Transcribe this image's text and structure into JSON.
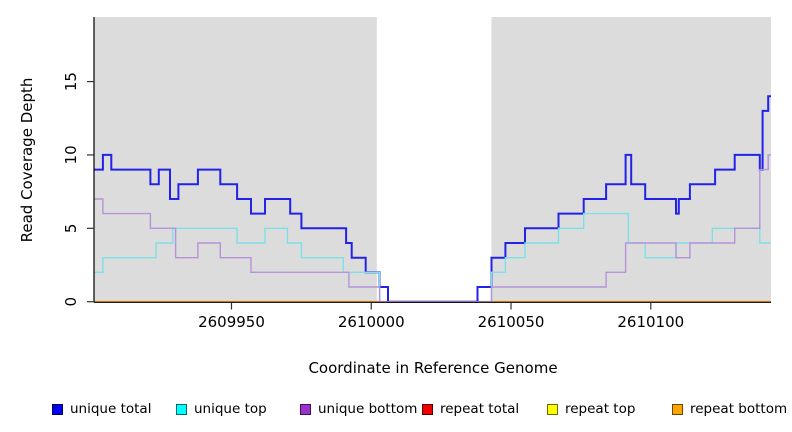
{
  "chart_data": {
    "type": "line",
    "subtype": "step",
    "title": "",
    "xlabel": "Coordinate in Reference Genome",
    "ylabel": "Read Coverage Depth",
    "xlim": [
      2609901,
      2610143
    ],
    "ylim": [
      0,
      19.4
    ],
    "xticks": [
      2609950,
      2610000,
      2610050,
      2610100
    ],
    "yticks": [
      0,
      5,
      10,
      15
    ],
    "grid": false,
    "plot_background": "#dcdcdc",
    "uncovered_band": {
      "x_start": 2610002,
      "x_end": 2610043,
      "color": "#ffffff"
    },
    "series": [
      {
        "name": "repeat total",
        "color": "#dd1111",
        "width": 1.4,
        "steps": [
          [
            2609901,
            0
          ]
        ]
      },
      {
        "name": "repeat top",
        "color": "#f2f20a",
        "width": 1.4,
        "steps": [
          [
            2609901,
            0
          ]
        ]
      },
      {
        "name": "repeat bottom",
        "color": "#ff9818",
        "width": 1.7,
        "steps": [
          [
            2609901,
            0
          ]
        ]
      },
      {
        "name": "unique total",
        "color": "#2222e8",
        "width": 2.0,
        "steps": [
          [
            2609901,
            9
          ],
          [
            2609904,
            10
          ],
          [
            2609907,
            9
          ],
          [
            2609921,
            8
          ],
          [
            2609924,
            9
          ],
          [
            2609928,
            7
          ],
          [
            2609931,
            8
          ],
          [
            2609938,
            9
          ],
          [
            2609946,
            8
          ],
          [
            2609952,
            7
          ],
          [
            2609957,
            6
          ],
          [
            2609962,
            7
          ],
          [
            2609971,
            6
          ],
          [
            2609975,
            5
          ],
          [
            2609991,
            4
          ],
          [
            2609993,
            3
          ],
          [
            2609998,
            2
          ],
          [
            2610003,
            1
          ],
          [
            2610006,
            0
          ],
          [
            2610038,
            1
          ],
          [
            2610043,
            3
          ],
          [
            2610048,
            4
          ],
          [
            2610055,
            5
          ],
          [
            2610067,
            6
          ],
          [
            2610076,
            7
          ],
          [
            2610084,
            8
          ],
          [
            2610091,
            10
          ],
          [
            2610093,
            8
          ],
          [
            2610098,
            7
          ],
          [
            2610109,
            6
          ],
          [
            2610110,
            7
          ],
          [
            2610114,
            8
          ],
          [
            2610123,
            9
          ],
          [
            2610130,
            10
          ],
          [
            2610139,
            9
          ],
          [
            2610140,
            13
          ],
          [
            2610142,
            14
          ]
        ]
      },
      {
        "name": "unique top",
        "color": "#7de0e8",
        "width": 1.4,
        "steps": [
          [
            2609901,
            2
          ],
          [
            2609904,
            3
          ],
          [
            2609923,
            4
          ],
          [
            2609929,
            5
          ],
          [
            2609952,
            4
          ],
          [
            2609962,
            5
          ],
          [
            2609970,
            4
          ],
          [
            2609975,
            3
          ],
          [
            2609990,
            2
          ],
          [
            2610003,
            0
          ],
          [
            2610043,
            2
          ],
          [
            2610048,
            3
          ],
          [
            2610055,
            4
          ],
          [
            2610067,
            5
          ],
          [
            2610076,
            6
          ],
          [
            2610092,
            4
          ],
          [
            2610098,
            3
          ],
          [
            2610109,
            4
          ],
          [
            2610122,
            5
          ],
          [
            2610139,
            4
          ]
        ]
      },
      {
        "name": "unique bottom",
        "color": "#b593da",
        "width": 1.4,
        "steps": [
          [
            2609901,
            7
          ],
          [
            2609904,
            6
          ],
          [
            2609921,
            5
          ],
          [
            2609930,
            3
          ],
          [
            2609938,
            4
          ],
          [
            2609946,
            3
          ],
          [
            2609957,
            2
          ],
          [
            2609992,
            1
          ],
          [
            2610003,
            0
          ],
          [
            2610043,
            1
          ],
          [
            2610084,
            2
          ],
          [
            2610091,
            4
          ],
          [
            2610109,
            3
          ],
          [
            2610114,
            4
          ],
          [
            2610130,
            5
          ],
          [
            2610139,
            9
          ],
          [
            2610142,
            10
          ]
        ]
      }
    ],
    "legend": [
      {
        "label": "unique total",
        "fill": "#0000ee",
        "border": "#00005a"
      },
      {
        "label": "unique top",
        "fill": "#00ffff",
        "border": "#006a6a"
      },
      {
        "label": "unique bottom",
        "fill": "#9933cc",
        "border": "#3d1456"
      },
      {
        "label": "repeat total",
        "fill": "#ee0000",
        "border": "#5a0000"
      },
      {
        "label": "repeat top",
        "fill": "#ffff00",
        "border": "#6a6a00"
      },
      {
        "label": "repeat bottom",
        "fill": "#ffa500",
        "border": "#6a4500"
      }
    ],
    "legend_position": "bottom"
  }
}
